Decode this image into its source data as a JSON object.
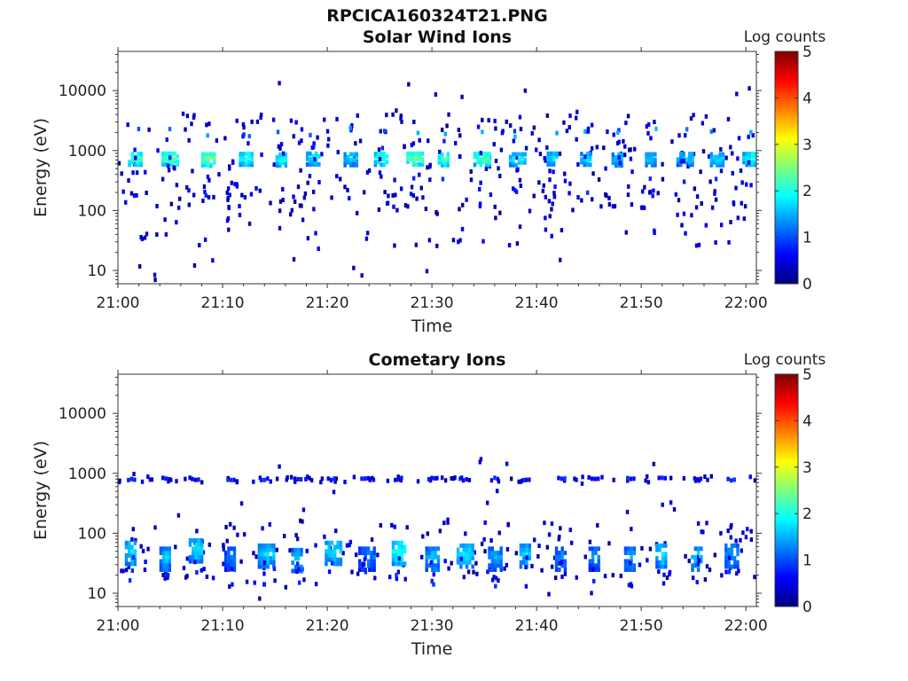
{
  "figure": {
    "title_line1": "RPCICA160324T21.PNG",
    "title_line2": "Solar Wind Ions"
  },
  "colorscale": {
    "stops": [
      "#00007f",
      "#0000ff",
      "#007fff",
      "#00ffff",
      "#7fff7f",
      "#ffff00",
      "#ff7f00",
      "#ff0000",
      "#7f0000"
    ],
    "background": "#ffffff"
  },
  "chart_data": [
    {
      "type": "heatmap",
      "title": "",
      "xlabel": "Time",
      "ylabel": "Energy (eV)",
      "x_ticks": [
        "21:00",
        "21:10",
        "21:20",
        "21:30",
        "21:40",
        "21:50",
        "22:00"
      ],
      "x_range_minutes": [
        0,
        61
      ],
      "y_ticks": [
        "10",
        "100",
        "1000",
        "10000"
      ],
      "y_scale": "log",
      "ylim": [
        6,
        45000
      ],
      "colorbar": {
        "title": "Log counts",
        "ticks": [
          "0",
          "1",
          "2",
          "3",
          "4",
          "5"
        ],
        "range": [
          0,
          5
        ]
      },
      "description_of_data": "Periodic bursts of ions near 700-800 eV about every 3 minutes with sparse scattered counts at all energies",
      "bursts": [
        {
          "t": 1.6,
          "e": 750,
          "c": 2.1
        },
        {
          "t": 4.8,
          "e": 760,
          "c": 2.2
        },
        {
          "t": 8.6,
          "e": 740,
          "c": 2.3
        },
        {
          "t": 12.2,
          "e": 750,
          "c": 1.9
        },
        {
          "t": 15.7,
          "e": 730,
          "c": 1.8
        },
        {
          "t": 18.6,
          "e": 760,
          "c": 1.7
        },
        {
          "t": 22.2,
          "e": 740,
          "c": 1.6
        },
        {
          "t": 25.1,
          "e": 750,
          "c": 2.0
        },
        {
          "t": 28.2,
          "e": 760,
          "c": 2.2
        },
        {
          "t": 31.2,
          "e": 740,
          "c": 2.0
        },
        {
          "t": 34.6,
          "e": 750,
          "c": 2.1
        },
        {
          "t": 38.0,
          "e": 740,
          "c": 1.7
        },
        {
          "t": 41.6,
          "e": 760,
          "c": 1.6
        },
        {
          "t": 44.8,
          "e": 750,
          "c": 1.6
        },
        {
          "t": 47.8,
          "e": 730,
          "c": 1.5
        },
        {
          "t": 51.0,
          "e": 740,
          "c": 1.5
        },
        {
          "t": 54.0,
          "e": 750,
          "c": 1.5
        },
        {
          "t": 57.2,
          "e": 740,
          "c": 1.6
        },
        {
          "t": 60.3,
          "e": 750,
          "c": 1.8
        }
      ]
    },
    {
      "type": "heatmap",
      "title": "Cometary Ions",
      "xlabel": "Time",
      "ylabel": "Energy (eV)",
      "x_ticks": [
        "21:00",
        "21:10",
        "21:20",
        "21:30",
        "21:40",
        "21:50",
        "22:00"
      ],
      "x_range_minutes": [
        0,
        61
      ],
      "y_ticks": [
        "10",
        "100",
        "1000",
        "10000"
      ],
      "y_scale": "log",
      "ylim": [
        6,
        45000
      ],
      "colorbar": {
        "title": "Log counts",
        "ticks": [
          "0",
          "1",
          "2",
          "3",
          "4",
          "5"
        ],
        "range": [
          0,
          5
        ]
      },
      "description_of_data": "Periodic bursts of cometary ions near 30-60 eV about every 3 minutes, with a weak band near 800 eV",
      "bursts": [
        {
          "t": 1.3,
          "e": 50,
          "c": 1.6
        },
        {
          "t": 4.6,
          "e": 40,
          "c": 1.4
        },
        {
          "t": 7.4,
          "e": 55,
          "c": 1.6
        },
        {
          "t": 10.8,
          "e": 40,
          "c": 1.1
        },
        {
          "t": 14.0,
          "e": 45,
          "c": 1.5
        },
        {
          "t": 17.2,
          "e": 38,
          "c": 1.4
        },
        {
          "t": 20.4,
          "e": 50,
          "c": 1.6
        },
        {
          "t": 23.6,
          "e": 40,
          "c": 1.1
        },
        {
          "t": 26.8,
          "e": 50,
          "c": 1.8
        },
        {
          "t": 30.0,
          "e": 40,
          "c": 1.4
        },
        {
          "t": 33.0,
          "e": 45,
          "c": 1.6
        },
        {
          "t": 36.0,
          "e": 40,
          "c": 1.3
        },
        {
          "t": 39.0,
          "e": 45,
          "c": 1.5
        },
        {
          "t": 42.4,
          "e": 40,
          "c": 1.2
        },
        {
          "t": 45.6,
          "e": 40,
          "c": 1.2
        },
        {
          "t": 49.0,
          "e": 40,
          "c": 1.3
        },
        {
          "t": 52.0,
          "e": 45,
          "c": 1.6
        },
        {
          "t": 55.4,
          "e": 40,
          "c": 1.5
        },
        {
          "t": 58.6,
          "e": 45,
          "c": 1.3
        }
      ]
    }
  ]
}
